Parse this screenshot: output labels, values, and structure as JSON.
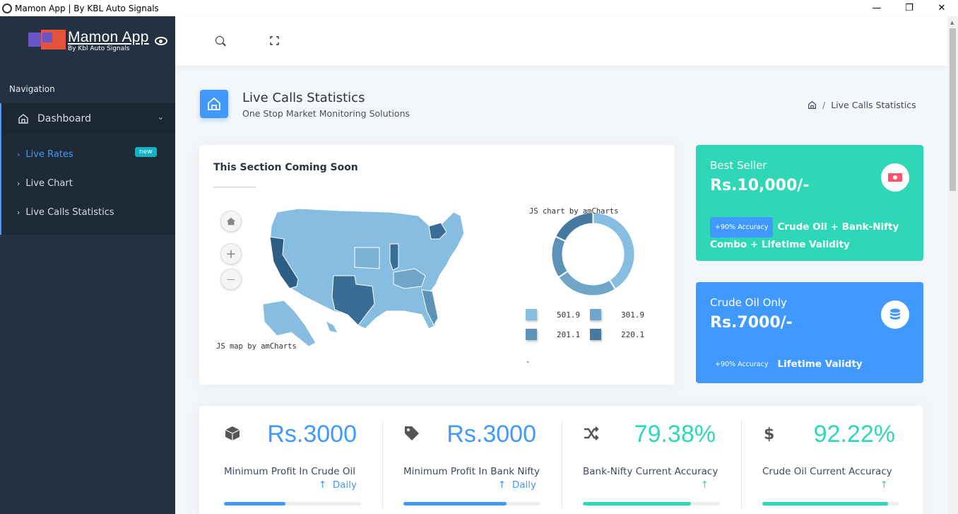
{
  "window": {
    "title": "Mamon App | By KBL Auto Signals",
    "minimize": "—",
    "restore": "❐",
    "close": "✕"
  },
  "brand": {
    "name": "Mamon App",
    "subtitle": "By Kbl Auto Signals"
  },
  "sidebar": {
    "caption": "Navigation",
    "main_item": "Dashboard",
    "items": [
      {
        "label": "Live Rates",
        "badge": "new",
        "active": true
      },
      {
        "label": "Live Chart",
        "active": false
      },
      {
        "label": "Live Calls Statistics",
        "active": false
      }
    ]
  },
  "page": {
    "title": "Live Calls Statistics",
    "subtitle": "One Stop Market Monitoring Solutions",
    "breadcrumb": "Live Calls Statistics"
  },
  "map_card": {
    "title": "This Section Coming Soon",
    "map_credit": "JS map by amCharts",
    "chart_credit": "JS chart by amCharts",
    "zoom_in": "+",
    "zoom_out": "—",
    "legend": [
      {
        "value": "501.9",
        "color": "#86bde0"
      },
      {
        "value": "301.9",
        "color": "#6fa6c9"
      },
      {
        "value": "201.1",
        "color": "#5b92b6"
      },
      {
        "value": "220.1",
        "color": "#46799f"
      }
    ],
    "legend_dash": "-"
  },
  "price_cards": [
    {
      "label": "Best Seller",
      "price": "Rs.10,000/-",
      "badge": "+90% Accuracy",
      "desc": "Crude Oil + Bank-Nifty Combo + Lifetime Validity",
      "icon": "money-bill-icon",
      "color": "#2ed8b6"
    },
    {
      "label": "Crude Oil Only",
      "price": "Rs.7000/-",
      "badge": "+90% Accuracy",
      "desc": "Lifetime Validty",
      "icon": "database-icon",
      "color": "#4099ff"
    }
  ],
  "stats": [
    {
      "icon": "cube-icon",
      "value": "Rs.3000",
      "label": "Minimum Profit In Crude Oil",
      "trend": "Daily",
      "progress": 0.45,
      "color": "#4099ff"
    },
    {
      "icon": "tag-icon",
      "value": "Rs.3000",
      "label": "Minimum Profit In Bank Nifty",
      "trend": "Daily",
      "progress": 0.75,
      "color": "#4099ff"
    },
    {
      "icon": "random-icon",
      "value": "79.38%",
      "label": "Bank-Nifty Current Accuracy",
      "trend": "",
      "progress": 0.79,
      "color": "#2ed8b6"
    },
    {
      "icon": "dollar-icon",
      "value": "92.22%",
      "label": "Crude Oil Current Accuracy",
      "trend": "",
      "progress": 0.92,
      "color": "#2ed8b6"
    }
  ],
  "donut": {
    "values": [
      501.9,
      301.9,
      201.1,
      220.1
    ],
    "colors": [
      "#86bde0",
      "#6fa6c9",
      "#5b92b6",
      "#46799f"
    ]
  }
}
